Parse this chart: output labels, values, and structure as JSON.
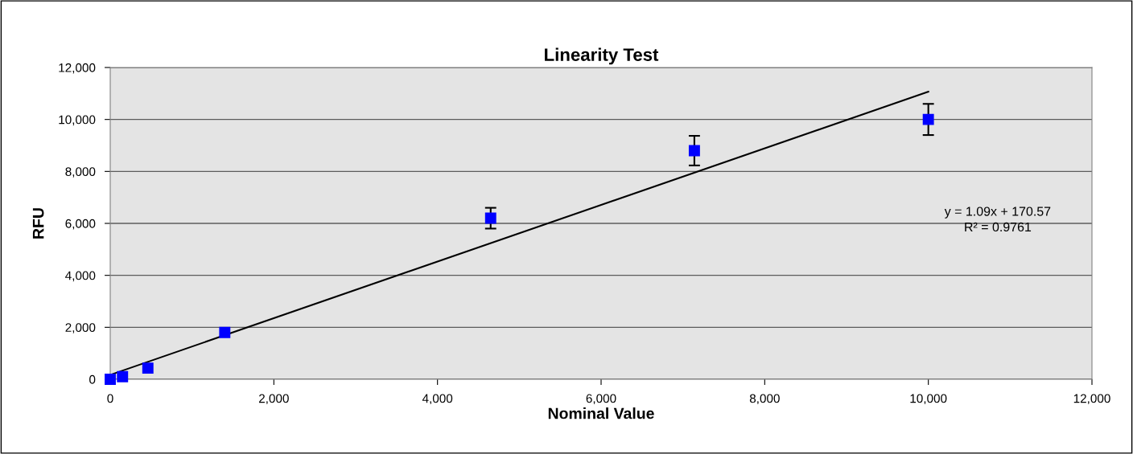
{
  "chart_data": {
    "type": "scatter",
    "title": "Linearity Test",
    "xlabel": "Nominal Value",
    "ylabel": "RFU",
    "xlim": [
      0,
      12000
    ],
    "ylim": [
      0,
      12000
    ],
    "xticks": [
      0,
      {
        "value": 2000,
        "label": "2,000"
      },
      {
        "value": 4000,
        "label": "4,000"
      },
      {
        "value": 6000,
        "label": "6,000"
      },
      {
        "value": 8000,
        "label": "8,000"
      },
      {
        "value": 10000,
        "label": "10,000"
      },
      {
        "value": 12000,
        "label": "12,000"
      }
    ],
    "yticks": [
      0,
      {
        "value": 2000,
        "label": "2,000"
      },
      {
        "value": 4000,
        "label": "4,000"
      },
      {
        "value": 6000,
        "label": "6,000"
      },
      {
        "value": 8000,
        "label": "8,000"
      },
      {
        "value": 10000,
        "label": "10,000"
      },
      {
        "value": 12000,
        "label": "12,000"
      }
    ],
    "grid": "y",
    "series": [
      {
        "color": "#0000ff",
        "marker": "square",
        "x": [
          0,
          150,
          460,
          1400,
          4650,
          7140,
          10000
        ],
        "values": [
          0,
          100,
          430,
          1800,
          6200,
          8800,
          10000
        ],
        "errors": [
          null,
          null,
          null,
          null,
          400,
          570,
          600
        ]
      },
      {
        "type": "line",
        "color": "#000000",
        "x": [
          0,
          10000
        ],
        "values": [
          170,
          11070
        ]
      }
    ],
    "annotations": [
      "y = 1.09x + 170.57",
      "R² = 0.9761"
    ]
  }
}
